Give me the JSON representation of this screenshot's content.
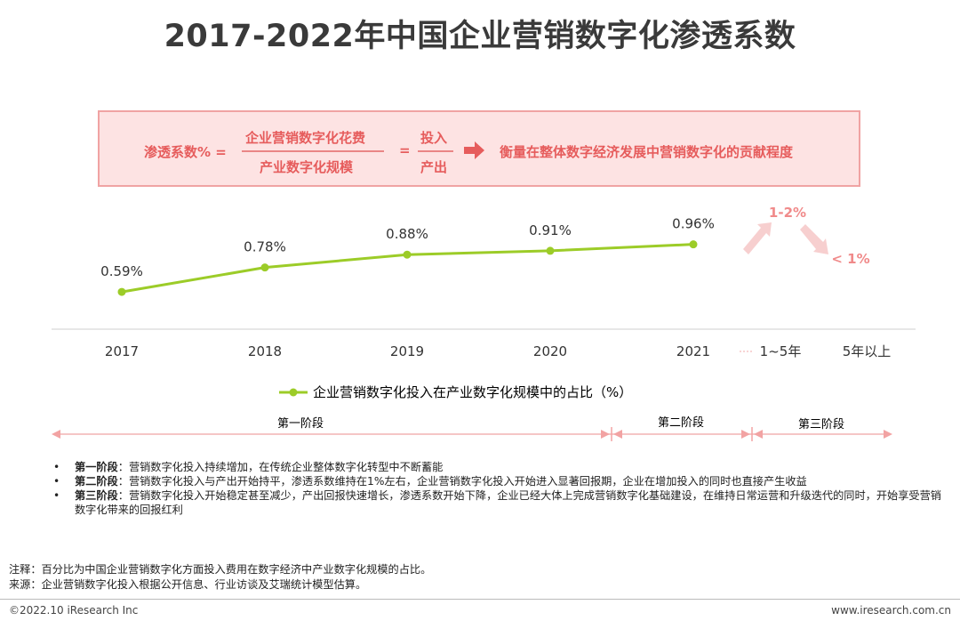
{
  "title": "2017-2022年中国企业营销数字化渗透系数",
  "formula": {
    "lhs": "渗透系数% =",
    "numerator": "企业营销数字化花费",
    "denominator": "产业数字化规模",
    "equals": "=",
    "numerator2": "投入",
    "denominator2": "产出",
    "description": "衡量在整体数字经济发展中营销数字化的贡献程度"
  },
  "chart_data": {
    "type": "line",
    "categories": [
      "2017",
      "2018",
      "2019",
      "2020",
      "2021"
    ],
    "series": [
      {
        "name": "企业营销数字化投入在产业数字化规模中的占比（%）",
        "values": [
          0.59,
          0.78,
          0.88,
          0.91,
          0.96
        ],
        "labels": [
          "0.59%",
          "0.78%",
          "0.88%",
          "0.91%",
          "0.96%"
        ]
      }
    ],
    "forecast_categories": [
      "1~5年",
      "5年以上"
    ],
    "forecast_labels": [
      "1-2%",
      "< 1%"
    ],
    "ylim": [
      0.3,
      1.2
    ],
    "color": "#9ccc28",
    "legend_position": "bottom"
  },
  "stages": [
    "第一阶段",
    "第二阶段",
    "第三阶段"
  ],
  "notes": [
    {
      "label": "第一阶段",
      "sep": "：",
      "text": "营销数字化投入持续增加，在传统企业整体数字化转型中不断蓄能"
    },
    {
      "label": "第二阶段",
      "sep": "：",
      "text": "营销数字化投入与产出开始持平，渗透系数维持在1%左右，企业营销数字化投入开始进入显著回报期，企业在增加投入的同时也直接产生收益"
    },
    {
      "label": "第三阶段",
      "sep": "：",
      "text": "营销数字化投入开始稳定甚至减少，产出回报快速增长，渗透系数开始下降，企业已经大体上完成营销数字化基础建设，在维持日常运营和升级迭代的同时，开始享受营销数字化带来的回报红利"
    }
  ],
  "bullet": "•",
  "footnote": {
    "note": "注释：百分比为中国企业营销数字化方面投入费用在数字经济中产业数字化规模的占比。",
    "source": "来源：企业营销数字化投入根据公开信息、行业访谈及艾瑞统计模型估算。"
  },
  "footer": {
    "copyright": "©2022.10 iResearch Inc",
    "site": "www.iresearch.com.cn"
  },
  "colors": {
    "accent": "#e65c5c",
    "line": "#9ccc28",
    "box_fill": "#fde3e3",
    "box_border": "#f0a3a3",
    "arrow": "#f7c5c5"
  },
  "icons": [
    "right-arrow-icon",
    "up-arrow-icon",
    "down-arrow-icon"
  ]
}
